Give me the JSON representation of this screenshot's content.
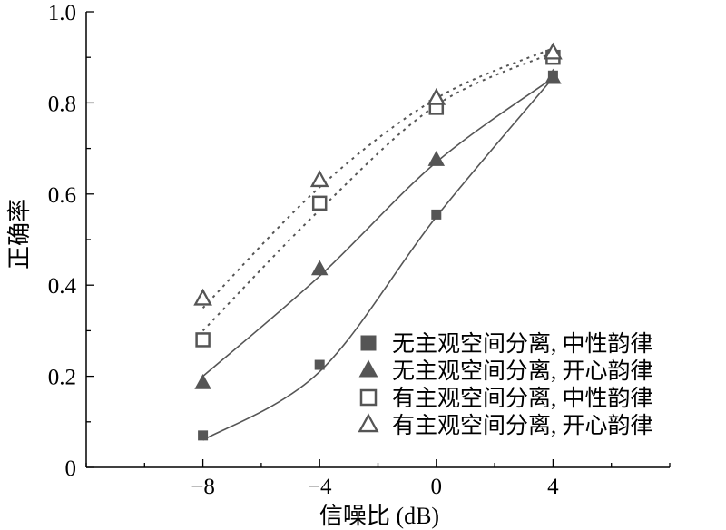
{
  "chart_data": {
    "type": "scatter",
    "title": "",
    "xlabel": "信噪比 (dB)",
    "ylabel": "正确率",
    "xlim": [
      -12,
      8
    ],
    "ylim": [
      0,
      1.0
    ],
    "x_ticks": [
      -8,
      -4,
      0,
      4
    ],
    "x_tick_labels": [
      "−8",
      "−4",
      "0",
      "4"
    ],
    "y_ticks": [
      0,
      0.2,
      0.4,
      0.6,
      0.8,
      1.0
    ],
    "y_tick_labels": [
      "0",
      "0.2",
      "0.4",
      "0.6",
      "0.8",
      "1.0"
    ],
    "grid": false,
    "legend_position": "bottom-right",
    "x": [
      -8,
      -4,
      0,
      4
    ],
    "series": [
      {
        "name": "无主观空间分离, 中性韵律",
        "marker": "square-filled",
        "fit_line": "solid",
        "values": [
          0.07,
          0.225,
          0.555,
          0.86
        ],
        "fit_values": [
          0.06,
          0.21,
          0.55,
          0.855
        ]
      },
      {
        "name": "无主观空间分离, 开心韵律",
        "marker": "triangle-filled",
        "fit_line": "solid",
        "values": [
          0.185,
          0.435,
          0.675,
          0.855
        ],
        "fit_values": [
          0.2,
          0.42,
          0.67,
          0.855
        ]
      },
      {
        "name": "有主观空间分离, 中性韵律",
        "marker": "square-open",
        "fit_line": "dotted",
        "values": [
          0.28,
          0.58,
          0.79,
          0.9
        ],
        "fit_values": [
          0.3,
          0.565,
          0.795,
          0.91
        ]
      },
      {
        "name": "有主观空间分离, 开心韵律",
        "marker": "triangle-open",
        "fit_line": "dotted",
        "values": [
          0.37,
          0.63,
          0.81,
          0.91
        ],
        "fit_values": [
          0.35,
          0.615,
          0.81,
          0.92
        ]
      }
    ]
  }
}
